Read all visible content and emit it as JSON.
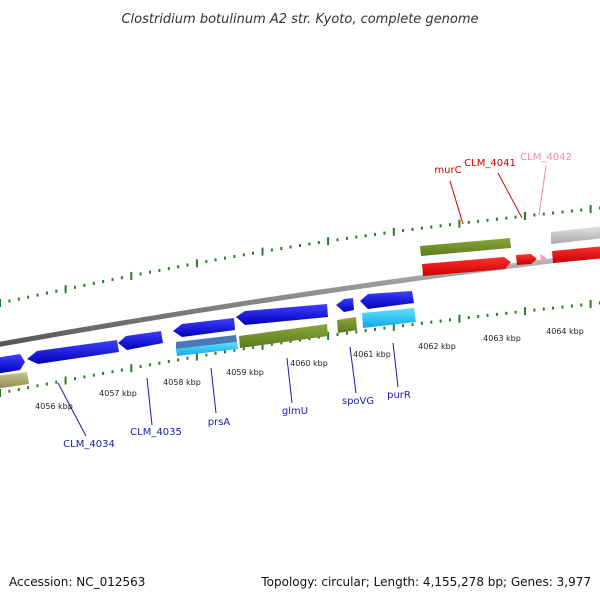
{
  "title": "Clostridium botulinum A2 str. Kyoto, complete genome",
  "footer": {
    "accession": "Accession: NC_012563",
    "summary": "Topology: circular; Length: 4,155,278 bp; Genes: 3,977"
  },
  "axis": {
    "ticks_outer": [
      "4056 kbp",
      "4057 kbp",
      "4058 kbp",
      "4059 kbp",
      "4060 kbp",
      "4061 kbp",
      "4062 kbp",
      "4063 kbp",
      "4064 kbp"
    ]
  },
  "genes": {
    "murC": "murC",
    "clm4041": "CLM_4041",
    "clm4042": "CLM_4042",
    "clm4034": "CLM_4034",
    "clm4035": "CLM_4035",
    "prsA": "prsA",
    "glmU": "glmU",
    "spoVG": "spoVG",
    "purR": "purR"
  },
  "colors": {
    "blue_label": "#1a1ab0",
    "red_label": "#cc0000",
    "pink_label": "#f08aa8"
  }
}
